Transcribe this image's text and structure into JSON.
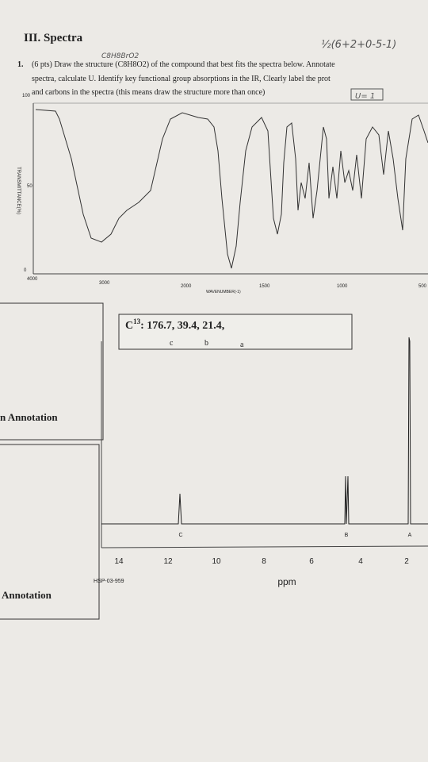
{
  "header": {
    "title": "III. Spectra",
    "handwritten_formula": "C8H8BrO2",
    "handwritten_calc": "½(6+2+0-5-1)",
    "handwritten_u": "U= 1"
  },
  "question": {
    "number": "1.",
    "lines": [
      "(6 pts) Draw the structure (C8H8O2) of the compound that best fits the spectra below. Annotate",
      "spectra, calculate U. Identify key functional group absorptions in the IR, Clearly label the prot",
      "and carbons in the spectra (this means draw the structure more than once)"
    ]
  },
  "ir": {
    "y_axis_label": "TRANSMITTANCE(%)",
    "y_labels": [
      "100",
      "50",
      "0"
    ],
    "x_labels": [
      "4000",
      "3000",
      "2000",
      "1500",
      "1000",
      "500"
    ],
    "x_axis_label": "WAVENUMBER(-1)"
  },
  "annotations": [
    "n Annotation",
    "Annotation"
  ],
  "carbon": {
    "symbol": "C",
    "superscript": "13",
    "shifts": ": 176.7, 39.4, 21.4,",
    "letters": [
      "c",
      "b",
      "a"
    ]
  },
  "nmr": {
    "peak_labels": [
      "C",
      "B",
      "A"
    ],
    "x_labels": [
      "14",
      "12",
      "10",
      "8",
      "6",
      "4",
      "2"
    ],
    "code": "HSP-03-959",
    "x_axis_label": "ppm"
  }
}
